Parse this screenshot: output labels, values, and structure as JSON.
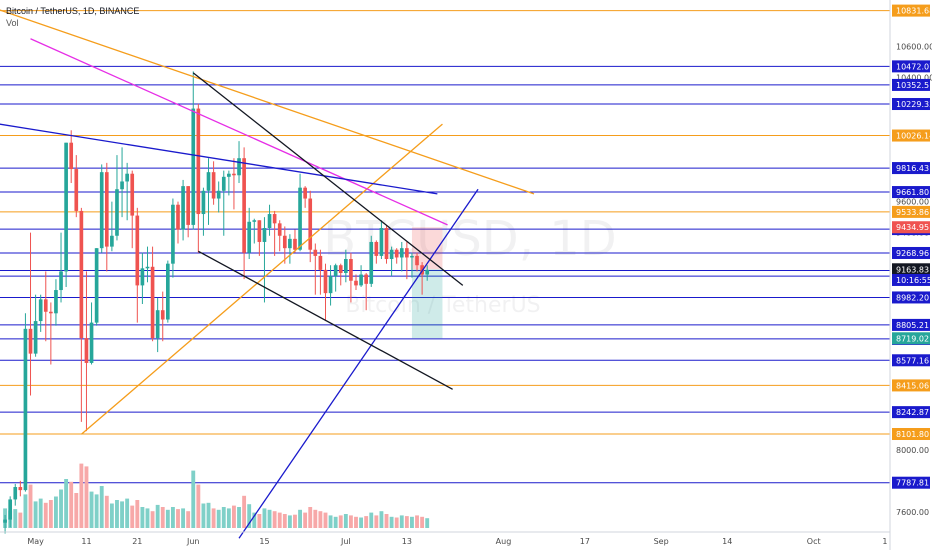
{
  "header": {
    "symbol_line": "Bitcoin / TetherUS, 1D, BINANCE",
    "indicator": "Vol"
  },
  "watermark": {
    "ticker": "BTCUSD, 1D",
    "name": "Bitcoin / TetherUS"
  },
  "chart_data": {
    "type": "candlestick",
    "title": "Bitcoin / TetherUS, 1D, BINANCE",
    "y_ticks": [
      "10600.00",
      "10400.00",
      "9600.00",
      "9400.00",
      "8000.00",
      "7600.00"
    ],
    "x_ticks": [
      {
        "label": "May",
        "date": "2020-05-01"
      },
      {
        "label": "11",
        "date": "2020-05-11"
      },
      {
        "label": "21",
        "date": "2020-05-21"
      },
      {
        "label": "Jun",
        "date": "2020-06-01"
      },
      {
        "label": "15",
        "date": "2020-06-15"
      },
      {
        "label": "Jul",
        "date": "2020-07-01"
      },
      {
        "label": "13",
        "date": "2020-07-13"
      },
      {
        "label": "Aug",
        "date": "2020-08-01"
      },
      {
        "label": "17",
        "date": "2020-08-17"
      },
      {
        "label": "Sep",
        "date": "2020-09-01"
      },
      {
        "label": "14",
        "date": "2020-09-14"
      },
      {
        "label": "Oct",
        "date": "2020-10-01"
      },
      {
        "label": "1",
        "date": "2020-10-15"
      }
    ],
    "x_range": [
      "2020-04-24",
      "2020-10-16"
    ],
    "y_range": [
      7470,
      10900
    ],
    "grid": false,
    "colors": {
      "up": "#26a69a",
      "down": "#ef5350",
      "vol_up": "#7fd0c8",
      "vol_down": "#f7a8a8"
    },
    "candles": [
      [
        "2020-04-25",
        7530,
        7580,
        7460,
        7550
      ],
      [
        "2020-04-26",
        7550,
        7700,
        7500,
        7680
      ],
      [
        "2020-04-27",
        7680,
        7780,
        7640,
        7760
      ],
      [
        "2020-04-28",
        7760,
        7800,
        7700,
        7740
      ],
      [
        "2020-04-29",
        7740,
        8880,
        7730,
        8780
      ],
      [
        "2020-04-30",
        8780,
        9400,
        8350,
        8620
      ],
      [
        "2020-05-01",
        8620,
        9000,
        8600,
        8830
      ],
      [
        "2020-05-02",
        8830,
        9000,
        8760,
        8970
      ],
      [
        "2020-05-03",
        8970,
        9150,
        8700,
        8890
      ],
      [
        "2020-05-04",
        8890,
        8950,
        8550,
        8880
      ],
      [
        "2020-05-05",
        8880,
        9100,
        8800,
        9030
      ],
      [
        "2020-05-06",
        9030,
        9400,
        8950,
        9150
      ],
      [
        "2020-05-07",
        9150,
        9980,
        9050,
        9980
      ],
      [
        "2020-05-08",
        9980,
        10060,
        9720,
        9810
      ],
      [
        "2020-05-09",
        9810,
        9900,
        9500,
        9540
      ],
      [
        "2020-05-10",
        9540,
        9560,
        8180,
        8720
      ],
      [
        "2020-05-11",
        8720,
        9150,
        8120,
        8560
      ],
      [
        "2020-05-12",
        8560,
        8950,
        8550,
        8820
      ],
      [
        "2020-05-13",
        8820,
        9300,
        8800,
        9300
      ],
      [
        "2020-05-14",
        9300,
        9840,
        9270,
        9790
      ],
      [
        "2020-05-15",
        9790,
        9850,
        9150,
        9310
      ],
      [
        "2020-05-16",
        9310,
        9600,
        9280,
        9380
      ],
      [
        "2020-05-17",
        9380,
        9900,
        9350,
        9680
      ],
      [
        "2020-05-18",
        9680,
        9950,
        9500,
        9730
      ],
      [
        "2020-05-19",
        9730,
        9850,
        9480,
        9780
      ],
      [
        "2020-05-20",
        9780,
        9800,
        9300,
        9510
      ],
      [
        "2020-05-21",
        9510,
        9560,
        8820,
        9060
      ],
      [
        "2020-05-22",
        9060,
        9270,
        8940,
        9170
      ],
      [
        "2020-05-23",
        9170,
        9310,
        9080,
        9180
      ],
      [
        "2020-05-24",
        9180,
        9310,
        8700,
        8720
      ],
      [
        "2020-05-25",
        8720,
        8980,
        8630,
        8900
      ],
      [
        "2020-05-26",
        8900,
        9020,
        8700,
        8840
      ],
      [
        "2020-05-27",
        8840,
        9220,
        8820,
        9200
      ],
      [
        "2020-05-28",
        9200,
        9620,
        9110,
        9580
      ],
      [
        "2020-05-29",
        9580,
        9600,
        9330,
        9420
      ],
      [
        "2020-05-30",
        9420,
        9740,
        9350,
        9700
      ],
      [
        "2020-05-31",
        9700,
        9700,
        9370,
        9450
      ],
      [
        "2020-06-01",
        9450,
        10440,
        9420,
        10200
      ],
      [
        "2020-06-02",
        10200,
        10230,
        9270,
        9520
      ],
      [
        "2020-06-03",
        9520,
        9690,
        9380,
        9670
      ],
      [
        "2020-06-04",
        9670,
        9880,
        9450,
        9790
      ],
      [
        "2020-06-05",
        9790,
        9860,
        9580,
        9620
      ],
      [
        "2020-06-06",
        9620,
        9730,
        9530,
        9670
      ],
      [
        "2020-06-07",
        9670,
        9800,
        9380,
        9760
      ],
      [
        "2020-06-08",
        9760,
        9800,
        9640,
        9780
      ],
      [
        "2020-06-09",
        9780,
        9880,
        9550,
        9770
      ],
      [
        "2020-06-10",
        9770,
        9990,
        9720,
        9880
      ],
      [
        "2020-06-11",
        9880,
        9950,
        9100,
        9270
      ],
      [
        "2020-06-12",
        9270,
        9560,
        9230,
        9470
      ],
      [
        "2020-06-13",
        9470,
        9490,
        9330,
        9480
      ],
      [
        "2020-06-14",
        9480,
        9480,
        9250,
        9340
      ],
      [
        "2020-06-15",
        9340,
        9500,
        8950,
        9430
      ],
      [
        "2020-06-16",
        9430,
        9580,
        9380,
        9520
      ],
      [
        "2020-06-17",
        9520,
        9540,
        9250,
        9460
      ],
      [
        "2020-06-18",
        9460,
        9480,
        9280,
        9380
      ],
      [
        "2020-06-19",
        9380,
        9440,
        9200,
        9300
      ],
      [
        "2020-06-20",
        9300,
        9390,
        9200,
        9360
      ],
      [
        "2020-06-21",
        9360,
        9420,
        9270,
        9290
      ],
      [
        "2020-06-22",
        9290,
        9780,
        9280,
        9690
      ],
      [
        "2020-06-23",
        9690,
        9700,
        9560,
        9620
      ],
      [
        "2020-06-24",
        9620,
        9670,
        9210,
        9290
      ],
      [
        "2020-06-25",
        9290,
        9330,
        9000,
        9250
      ],
      [
        "2020-06-26",
        9250,
        9290,
        9000,
        9160
      ],
      [
        "2020-06-27",
        9160,
        9200,
        8830,
        9010
      ],
      [
        "2020-06-28",
        9010,
        9190,
        8930,
        9120
      ],
      [
        "2020-06-29",
        9120,
        9200,
        9020,
        9190
      ],
      [
        "2020-06-30",
        9190,
        9200,
        9060,
        9140
      ],
      [
        "2020-07-01",
        9140,
        9290,
        9080,
        9230
      ],
      [
        "2020-07-02",
        9230,
        9270,
        8950,
        9090
      ],
      [
        "2020-07-03",
        9090,
        9130,
        9030,
        9060
      ],
      [
        "2020-07-04",
        9060,
        9190,
        9050,
        9130
      ],
      [
        "2020-07-05",
        9130,
        9140,
        8900,
        9070
      ],
      [
        "2020-07-06",
        9070,
        9380,
        9050,
        9340
      ],
      [
        "2020-07-07",
        9340,
        9350,
        9200,
        9250
      ],
      [
        "2020-07-08",
        9250,
        9480,
        9230,
        9430
      ],
      [
        "2020-07-09",
        9430,
        9450,
        9200,
        9230
      ],
      [
        "2020-07-10",
        9230,
        9310,
        9120,
        9290
      ],
      [
        "2020-07-11",
        9290,
        9300,
        9200,
        9240
      ],
      [
        "2020-07-12",
        9240,
        9340,
        9150,
        9300
      ],
      [
        "2020-07-13",
        9300,
        9340,
        9100,
        9240
      ],
      [
        "2020-07-14",
        9240,
        9270,
        9110,
        9250
      ],
      [
        "2020-07-15",
        9250,
        9270,
        9150,
        9190
      ],
      [
        "2020-07-16",
        9190,
        9210,
        9000,
        9130
      ],
      [
        "2020-07-17",
        9130,
        9190,
        9090,
        9160
      ]
    ],
    "volume": [
      0.28,
      0.25,
      0.27,
      0.22,
      0.48,
      0.62,
      0.38,
      0.42,
      0.36,
      0.4,
      0.45,
      0.55,
      0.7,
      0.66,
      0.5,
      0.92,
      0.88,
      0.52,
      0.48,
      0.6,
      0.46,
      0.35,
      0.4,
      0.38,
      0.42,
      0.32,
      0.4,
      0.3,
      0.28,
      0.24,
      0.33,
      0.3,
      0.26,
      0.3,
      0.27,
      0.28,
      0.24,
      0.82,
      0.62,
      0.35,
      0.36,
      0.28,
      0.26,
      0.3,
      0.28,
      0.32,
      0.3,
      0.46,
      0.34,
      0.22,
      0.2,
      0.28,
      0.26,
      0.24,
      0.22,
      0.2,
      0.18,
      0.19,
      0.26,
      0.22,
      0.3,
      0.26,
      0.24,
      0.22,
      0.18,
      0.16,
      0.18,
      0.2,
      0.18,
      0.16,
      0.15,
      0.17,
      0.22,
      0.18,
      0.24,
      0.2,
      0.16,
      0.15,
      0.18,
      0.17,
      0.16,
      0.18,
      0.16,
      0.14
    ],
    "horizontal_levels": [
      {
        "price": 10831.68,
        "label": "10831.68",
        "color": "#f59d1b"
      },
      {
        "price": 10472.07,
        "label": "10472.07",
        "color": "#1a1acc"
      },
      {
        "price": 10352.51,
        "label": "10352.51",
        "color": "#1a1acc"
      },
      {
        "price": 10229.33,
        "label": "10229.33",
        "color": "#1a1acc"
      },
      {
        "price": 10026.14,
        "label": "10026.14",
        "color": "#f59d1b"
      },
      {
        "price": 9816.43,
        "label": "9816.43",
        "color": "#1a1acc"
      },
      {
        "price": 9661.8,
        "label": "9661.80",
        "color": "#1a1acc"
      },
      {
        "price": 9533.86,
        "label": "9533.86",
        "color": "#f59d1b"
      },
      {
        "price": 9423.04,
        "label": "9423.04",
        "color": "#1a1acc"
      },
      {
        "price": 9268.96,
        "label": "9268.96",
        "color": "#1a1acc"
      },
      {
        "price": 9155.95,
        "label": "9155.95",
        "color": "#1a1acc"
      },
      {
        "price": 9119.48,
        "label": "9119.48",
        "color": "#1a1acc"
      },
      {
        "price": 8982.2,
        "label": "8982.20",
        "color": "#1a1acc"
      },
      {
        "price": 8805.21,
        "label": "8805.21",
        "color": "#1a1acc"
      },
      {
        "price": 8714.94,
        "label": "8714.94",
        "color": "#1a1acc"
      },
      {
        "price": 8577.16,
        "label": "8577.16",
        "color": "#1a1acc"
      },
      {
        "price": 8415.06,
        "label": "8415.06",
        "color": "#f59d1b"
      },
      {
        "price": 8242.87,
        "label": "8242.87",
        "color": "#1a1acc"
      },
      {
        "price": 8101.8,
        "label": "8101.80",
        "color": "#f59d1b"
      },
      {
        "price": 7787.81,
        "label": "7787.81",
        "color": "#1a1acc"
      }
    ],
    "price_badges": [
      {
        "label": "9434.95",
        "price": 9434.95,
        "bg": "#ef5350"
      },
      {
        "label": "9163.83",
        "price": 9163.83,
        "bg": "#131722"
      },
      {
        "label": "10:16:55",
        "price": 9095.0,
        "bg": "#1a1acc"
      },
      {
        "label": "8719.02",
        "price": 8719.02,
        "bg": "#26a69a"
      }
    ],
    "trendlines": [
      {
        "from": [
          "2020-04-20",
          10880
        ],
        "to": [
          "2020-08-07",
          9650
        ],
        "color": "#f59d1b"
      },
      {
        "from": [
          "2020-05-10",
          8100
        ],
        "to": [
          "2020-07-20",
          10100
        ],
        "color": "#f59d1b"
      },
      {
        "from": [
          "2020-04-30",
          10650
        ],
        "to": [
          "2020-07-21",
          9450
        ],
        "color": "#e62ee6"
      },
      {
        "from": [
          "2020-04-20",
          10120
        ],
        "to": [
          "2020-07-19",
          9650
        ],
        "color": "#1a1acc"
      },
      {
        "from": [
          "2020-06-10",
          7430
        ],
        "to": [
          "2020-07-27",
          9680
        ],
        "color": "#1a1acc"
      },
      {
        "from": [
          "2020-06-01",
          10430
        ],
        "to": [
          "2020-07-24",
          9060
        ],
        "color": "#131722"
      },
      {
        "from": [
          "2020-06-02",
          9280
        ],
        "to": [
          "2020-07-22",
          8390
        ],
        "color": "#131722"
      }
    ],
    "position": {
      "from": "2020-07-14",
      "to": "2020-07-20",
      "entry": 9163.83,
      "stop": 9434.95,
      "target": 8719.02
    }
  }
}
